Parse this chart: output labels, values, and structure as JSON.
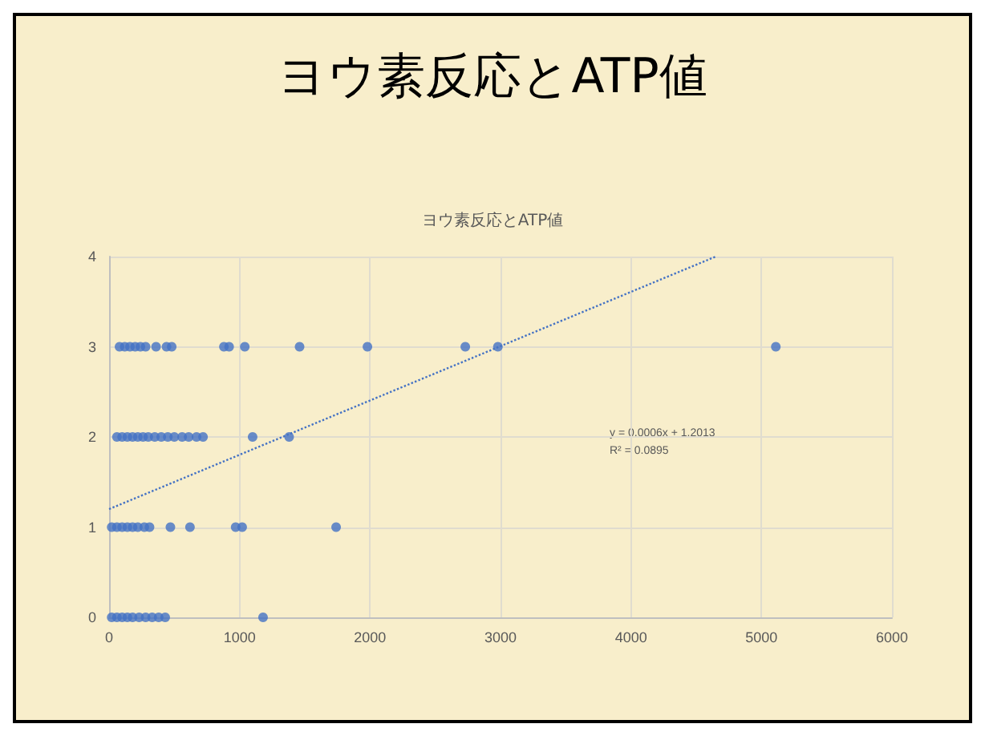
{
  "chart_data": {
    "type": "scatter",
    "title": "ヨウ素反応とATP値",
    "subtitle": "ヨウ素反応とATP値",
    "series": [
      {
        "color": "#4472c4",
        "marker": "circle",
        "x": [
          80,
          120,
          160,
          200,
          240,
          280,
          360,
          440,
          480,
          880,
          920,
          1040,
          1460,
          1980,
          2730,
          2980,
          5110,
          60,
          100,
          140,
          180,
          220,
          260,
          300,
          350,
          400,
          450,
          500,
          560,
          610,
          670,
          720,
          1100,
          1380,
          20,
          60,
          100,
          140,
          180,
          220,
          270,
          310,
          470,
          620,
          970,
          1020,
          1740,
          20,
          60,
          100,
          140,
          180,
          230,
          280,
          330,
          380,
          430,
          1180
        ],
        "values": [
          3,
          3,
          3,
          3,
          3,
          3,
          3,
          3,
          3,
          3,
          3,
          3,
          3,
          3,
          3,
          3,
          3,
          2,
          2,
          2,
          2,
          2,
          2,
          2,
          2,
          2,
          2,
          2,
          2,
          2,
          2,
          2,
          2,
          2,
          1,
          1,
          1,
          1,
          1,
          1,
          1,
          1,
          1,
          1,
          1,
          1,
          1,
          0,
          0,
          0,
          0,
          0,
          0,
          0,
          0,
          0,
          0,
          0
        ]
      },
      {
        "type": "line",
        "color": "#4472c4",
        "marker": "none",
        "line_style": "dotted",
        "x": [
          0,
          4650
        ],
        "values": [
          1.2,
          4
        ]
      }
    ],
    "xlim": [
      0,
      6000
    ],
    "xticks": [
      0,
      1000,
      2000,
      3000,
      4000,
      5000,
      6000
    ],
    "ylim": [
      0,
      4
    ],
    "yticks": [
      0,
      1,
      2,
      3,
      4
    ],
    "grid": true,
    "annotations": [
      "y = 0.0006x + 1.2013\nR² = 0.0895"
    ]
  }
}
